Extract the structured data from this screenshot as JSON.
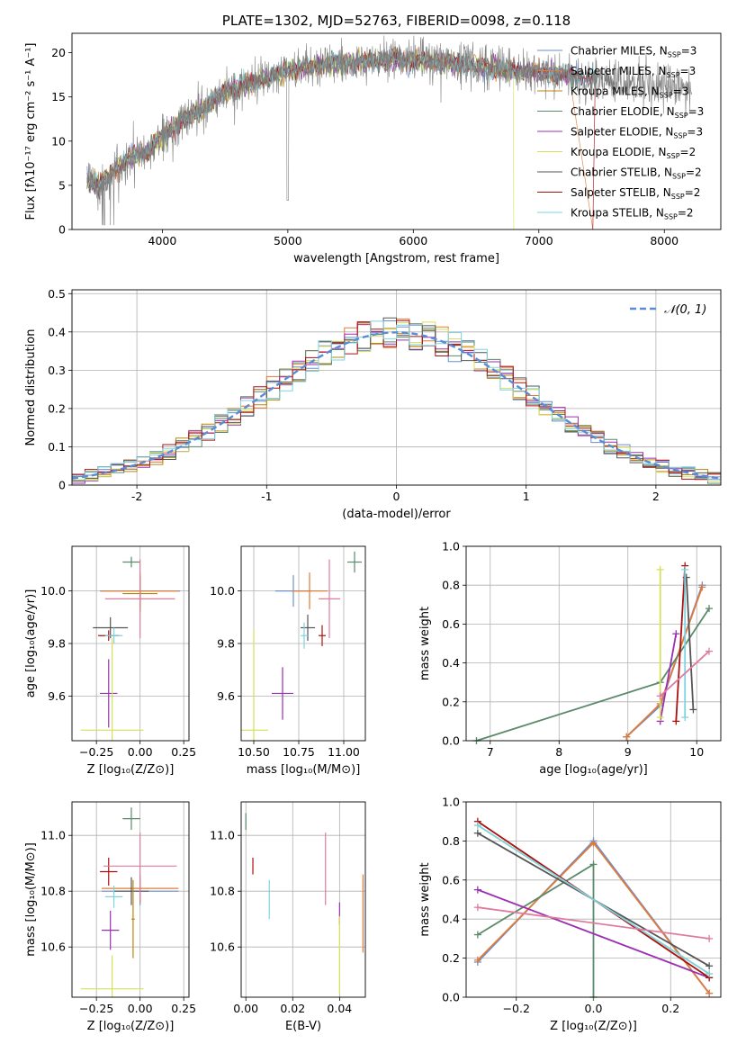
{
  "chart_data": [
    {
      "id": "spectrum",
      "type": "line",
      "title": "PLATE=1302, MJD=52763, FIBERID=0098, z=0.118",
      "xlabel": "wavelength [Angstrom, rest frame]",
      "ylabel": "Flux [fλ10⁻¹⁷ erg cm⁻² s⁻¹ A⁻¹]",
      "xlim": [
        3280,
        8450
      ],
      "ylim": [
        0,
        22.2
      ],
      "xticks": [
        4000,
        5000,
        6000,
        7000,
        8000
      ],
      "yticks": [
        0,
        5,
        10,
        15,
        20
      ],
      "legend_position": "right",
      "series": [
        {
          "name": "Chabrier MILES, N_SSP=3",
          "color": "#6a8fd0"
        },
        {
          "name": "Salpeter MILES, N_SSP=3",
          "color": "#e07b39"
        },
        {
          "name": "Kroupa MILES, N_SSP=3",
          "color": "#b8860b"
        },
        {
          "name": "Chabrier ELODIE, N_SSP=3",
          "color": "#5a8a6a"
        },
        {
          "name": "Salpeter ELODIE, N_SSP=3",
          "color": "#9b30b0"
        },
        {
          "name": "Kroupa ELODIE, N_SSP=2",
          "color": "#d6e05a"
        },
        {
          "name": "Chabrier STELIB, N_SSP=2",
          "color": "#555555"
        },
        {
          "name": "Salpeter STELIB, N_SSP=2",
          "color": "#aa1111"
        },
        {
          "name": "Kroupa STELIB, N_SSP=2",
          "color": "#7fd3e0"
        }
      ],
      "data_curve": {
        "x": [
          3400,
          3500,
          3600,
          3700,
          3800,
          3900,
          4000,
          4100,
          4200,
          4300,
          4400,
          4500,
          4600,
          4700,
          4800,
          4900,
          5000,
          5200,
          5400,
          5600,
          5800,
          6000,
          6200,
          6400,
          6600,
          6800,
          7000,
          7200,
          7400,
          7600,
          7800,
          8000,
          8200
        ],
        "y": [
          5.5,
          5.0,
          6.5,
          7.5,
          8.5,
          9.0,
          10.5,
          11.8,
          12.5,
          13.5,
          14.5,
          15.5,
          16.2,
          16.5,
          17.0,
          17.5,
          18.0,
          18.5,
          18.8,
          19.0,
          19.2,
          19.2,
          19.0,
          18.7,
          18.3,
          18.0,
          17.8,
          17.5,
          17.2,
          16.8,
          16.5,
          16.3,
          16.0
        ]
      }
    },
    {
      "id": "residuals",
      "type": "histogram",
      "xlabel": "(data-model)/error",
      "ylabel": "Normed distribution",
      "xlim": [
        -2.5,
        2.5
      ],
      "ylim": [
        0,
        0.51
      ],
      "xticks": [
        -2,
        -1,
        0,
        1,
        2
      ],
      "yticks": [
        0.0,
        0.1,
        0.2,
        0.3,
        0.4,
        0.5
      ],
      "legend": "𝒩(0, 1)",
      "normal_color": "#5b8bd6",
      "grid": true
    },
    {
      "id": "age-vs-Z",
      "type": "scatter",
      "xlabel": "Z [log₁₀(Z/Z⊙)]",
      "ylabel": "age  [log₁₀(age/yr)]",
      "xlim": [
        -0.39,
        0.28
      ],
      "ylim": [
        9.43,
        10.17
      ],
      "xticks": [
        "−0.25",
        "0.00",
        "0.25"
      ],
      "yticks": [
        "9.6",
        "9.8",
        "10.0"
      ],
      "points": [
        {
          "x": 0.0,
          "y": 10.0,
          "xerr": 0.23,
          "yerr": 0.06,
          "color": "#6a8fd0"
        },
        {
          "x": 0.0,
          "y": 10.0,
          "xerr": 0.22,
          "yerr": 0.07,
          "color": "#e07b39"
        },
        {
          "x": 0.0,
          "y": 9.99,
          "xerr": 0.1,
          "yerr": 0.07,
          "color": "#b8860b"
        },
        {
          "x": -0.05,
          "y": 10.11,
          "xerr": 0.05,
          "yerr": 0.02,
          "color": "#5a8a6a"
        },
        {
          "x": -0.18,
          "y": 9.61,
          "xerr": 0.05,
          "yerr": 0.13,
          "color": "#9b30b0"
        },
        {
          "x": -0.16,
          "y": 9.47,
          "xerr": 0.18,
          "yerr": 0.35,
          "color": "#d6e05a"
        },
        {
          "x": -0.17,
          "y": 9.86,
          "xerr": 0.1,
          "yerr": 0.04,
          "color": "#555555"
        },
        {
          "x": -0.18,
          "y": 9.83,
          "xerr": 0.06,
          "yerr": 0.02,
          "color": "#aa1111"
        },
        {
          "x": -0.15,
          "y": 9.83,
          "xerr": 0.05,
          "yerr": 0.03,
          "color": "#7fd3e0"
        },
        {
          "x": 0.0,
          "y": 9.97,
          "xerr": 0.2,
          "yerr": 0.15,
          "color": "#e07b9e"
        }
      ]
    },
    {
      "id": "age-vs-mass",
      "type": "scatter",
      "xlabel": "mass [log₁₀(M/M⊙)]",
      "ylabel": "",
      "xlim": [
        10.43,
        11.12
      ],
      "ylim": [
        9.43,
        10.17
      ],
      "xticks": [
        "10.50",
        "10.75",
        "11.00"
      ],
      "yticks": [
        "9.6",
        "9.8",
        "10.0"
      ],
      "points": [
        {
          "x": 10.72,
          "y": 10.0,
          "xerr": 0.1,
          "yerr": 0.06,
          "color": "#6a8fd0"
        },
        {
          "x": 10.81,
          "y": 10.0,
          "xerr": 0.1,
          "yerr": 0.07,
          "color": "#e07b39"
        },
        {
          "x": 11.06,
          "y": 10.11,
          "xerr": 0.04,
          "yerr": 0.04,
          "color": "#5a8a6a"
        },
        {
          "x": 10.66,
          "y": 9.61,
          "xerr": 0.06,
          "yerr": 0.1,
          "color": "#9b30b0"
        },
        {
          "x": 10.5,
          "y": 9.47,
          "xerr": 0.08,
          "yerr": 0.38,
          "color": "#d6e05a"
        },
        {
          "x": 10.8,
          "y": 9.86,
          "xerr": 0.04,
          "yerr": 0.05,
          "color": "#555555"
        },
        {
          "x": 10.88,
          "y": 9.83,
          "xerr": 0.02,
          "yerr": 0.04,
          "color": "#aa1111"
        },
        {
          "x": 10.78,
          "y": 9.83,
          "xerr": 0.02,
          "yerr": 0.05,
          "color": "#7fd3e0"
        },
        {
          "x": 10.92,
          "y": 9.97,
          "xerr": 0.06,
          "yerr": 0.15,
          "color": "#e07b9e"
        }
      ]
    },
    {
      "id": "mass-weight-vs-age",
      "type": "line",
      "xlabel": "age  [log₁₀(age/yr)]",
      "ylabel": "mass weight",
      "xlim": [
        6.65,
        10.35
      ],
      "ylim": [
        0,
        1.0
      ],
      "xticks": [
        "7",
        "8",
        "9",
        "10"
      ],
      "yticks": [
        "0.0",
        "0.2",
        "0.4",
        "0.6",
        "0.8",
        "1.0"
      ],
      "series": [
        {
          "color": "#6a8fd0",
          "x": [
            8.98,
            9.47,
            10.08
          ],
          "y": [
            0.02,
            0.18,
            0.8
          ]
        },
        {
          "color": "#e07b39",
          "x": [
            8.98,
            9.47,
            10.08
          ],
          "y": [
            0.02,
            0.19,
            0.79
          ]
        },
        {
          "color": "#5a8a6a",
          "x": [
            6.8,
            9.47,
            10.18
          ],
          "y": [
            0.0,
            0.3,
            0.68
          ]
        },
        {
          "color": "#9b30b0",
          "x": [
            9.47,
            9.7
          ],
          "y": [
            0.1,
            0.55
          ]
        },
        {
          "color": "#d6e05a",
          "x": [
            9.47,
            9.47
          ],
          "y": [
            0.12,
            0.88
          ]
        },
        {
          "color": "#555555",
          "x": [
            9.85,
            9.95
          ],
          "y": [
            0.84,
            0.16
          ]
        },
        {
          "color": "#aa1111",
          "x": [
            9.7,
            9.83
          ],
          "y": [
            0.1,
            0.9
          ]
        },
        {
          "color": "#7fd3e0",
          "x": [
            9.83,
            9.83
          ],
          "y": [
            0.12,
            0.88
          ]
        },
        {
          "color": "#e07b9e",
          "x": [
            9.47,
            10.18
          ],
          "y": [
            0.23,
            0.46
          ]
        }
      ]
    },
    {
      "id": "mass-vs-Z",
      "type": "scatter",
      "xlabel": "Z [log₁₀(Z/Z⊙)]",
      "ylabel": "mass [log₁₀(M/M⊙)]",
      "xlim": [
        -0.39,
        0.28
      ],
      "ylim": [
        10.42,
        11.12
      ],
      "xticks": [
        "−0.25",
        "0.00",
        "0.25"
      ],
      "yticks": [
        "10.6",
        "10.8",
        "11.0"
      ],
      "points": [
        {
          "x": 0.0,
          "y": 10.8,
          "xerr": 0.22,
          "yerr": 0.05,
          "color": "#6a8fd0"
        },
        {
          "x": 0.0,
          "y": 10.81,
          "xerr": 0.22,
          "yerr": 0.05,
          "color": "#e07b39"
        },
        {
          "x": -0.05,
          "y": 11.06,
          "xerr": 0.05,
          "yerr": 0.04,
          "color": "#5a8a6a"
        },
        {
          "x": -0.17,
          "y": 10.66,
          "xerr": 0.05,
          "yerr": 0.07,
          "color": "#9b30b0"
        },
        {
          "x": -0.16,
          "y": 10.45,
          "xerr": 0.18,
          "yerr": 0.12,
          "color": "#d6e05a"
        },
        {
          "x": -0.05,
          "y": 10.8,
          "xerr": 0.1,
          "yerr": 0.05,
          "color": "#555555"
        },
        {
          "x": -0.18,
          "y": 10.87,
          "xerr": 0.05,
          "yerr": 0.05,
          "color": "#aa1111"
        },
        {
          "x": -0.15,
          "y": 10.78,
          "xerr": 0.05,
          "yerr": 0.04,
          "color": "#7fd3e0"
        },
        {
          "x": 0.0,
          "y": 10.89,
          "xerr": 0.21,
          "yerr": 0.12,
          "color": "#e07b9e"
        },
        {
          "x": -0.04,
          "y": 10.7,
          "xerr": 0.01,
          "yerr": 0.14,
          "color": "#b8860b"
        }
      ]
    },
    {
      "id": "mass-vs-EBV",
      "type": "scatter",
      "xlabel": "E(B-V)",
      "ylabel": "",
      "xlim": [
        -0.002,
        0.051
      ],
      "ylim": [
        10.42,
        11.12
      ],
      "xticks": [
        "0.00",
        "0.02",
        "0.04"
      ],
      "yticks": [
        "10.6",
        "10.8",
        "11.0"
      ],
      "points": [
        {
          "x": 0.0,
          "y": 11.05,
          "xerr": 0,
          "yerr": 0.03,
          "color": "#5a8a6a"
        },
        {
          "x": 0.003,
          "y": 10.89,
          "xerr": 0,
          "yerr": 0.03,
          "color": "#aa1111"
        },
        {
          "x": 0.01,
          "y": 10.77,
          "xerr": 0,
          "yerr": 0.07,
          "color": "#7fd3e0"
        },
        {
          "x": 0.034,
          "y": 10.88,
          "xerr": 0,
          "yerr": 0.13,
          "color": "#e07b9e"
        },
        {
          "x": 0.04,
          "y": 10.72,
          "xerr": 0,
          "yerr": 0.04,
          "color": "#9b30b0"
        },
        {
          "x": 0.04,
          "y": 10.57,
          "xerr": 0,
          "yerr": 0.14,
          "color": "#d6e05a"
        },
        {
          "x": 0.05,
          "y": 10.72,
          "xerr": 0,
          "yerr": 0.14,
          "color": "#e07b39"
        }
      ]
    },
    {
      "id": "mass-weight-vs-Z",
      "type": "line",
      "xlabel": "Z [log₁₀(Z/Z⊙)]",
      "ylabel": "mass weight",
      "xlim": [
        -0.33,
        0.33
      ],
      "ylim": [
        0,
        1.0
      ],
      "xticks": [
        "−0.2",
        "0.0",
        "0.2"
      ],
      "yticks": [
        "0.0",
        "0.2",
        "0.4",
        "0.6",
        "0.8",
        "1.0"
      ],
      "series": [
        {
          "color": "#6a8fd0",
          "x": [
            -0.3,
            0.0,
            0.3
          ],
          "y": [
            0.18,
            0.8,
            0.02
          ]
        },
        {
          "color": "#e07b39",
          "x": [
            -0.3,
            0.0,
            0.3
          ],
          "y": [
            0.19,
            0.79,
            0.02
          ]
        },
        {
          "color": "#5a8a6a",
          "x": [
            -0.3,
            0.0,
            0.0
          ],
          "y": [
            0.32,
            0.68,
            0.0
          ]
        },
        {
          "color": "#9b30b0",
          "x": [
            -0.3,
            0.3
          ],
          "y": [
            0.55,
            0.1
          ]
        },
        {
          "color": "#d6e05a",
          "x": [
            -0.3,
            0.3
          ],
          "y": [
            0.88,
            0.12
          ]
        },
        {
          "color": "#555555",
          "x": [
            -0.3,
            0.3
          ],
          "y": [
            0.84,
            0.16
          ]
        },
        {
          "color": "#aa1111",
          "x": [
            -0.3,
            0.3
          ],
          "y": [
            0.9,
            0.1
          ]
        },
        {
          "color": "#7fd3e0",
          "x": [
            -0.3,
            0.3
          ],
          "y": [
            0.88,
            0.12
          ]
        },
        {
          "color": "#e07b9e",
          "x": [
            -0.3,
            0.3
          ],
          "y": [
            0.46,
            0.3
          ]
        }
      ]
    }
  ]
}
